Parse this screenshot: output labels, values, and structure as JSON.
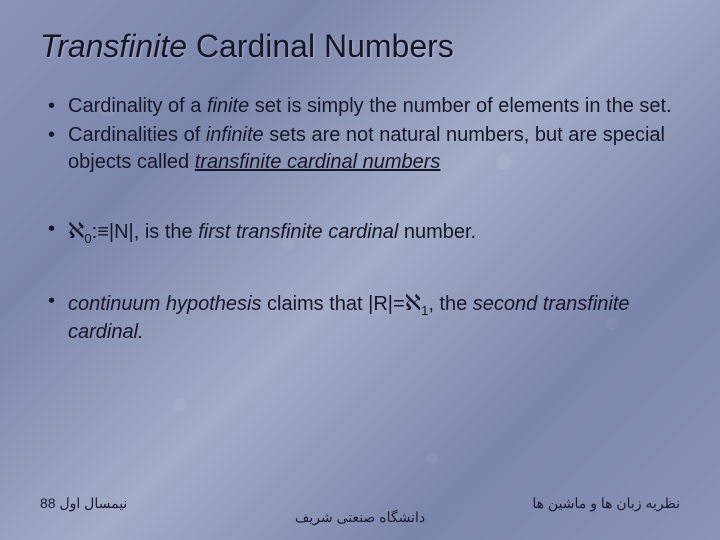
{
  "colors": {
    "background_gradient": [
      "#8a94b8",
      "#7b86ac",
      "#a4adc7"
    ],
    "text": "#161628",
    "title": "#161625"
  },
  "typography": {
    "title_fontsize": 32,
    "body_fontsize": 20,
    "footer_fontsize": 14,
    "title_style": "italic-first-word"
  },
  "title": {
    "italic_part": "Transfinite",
    "rest": " Cardinal Numbers"
  },
  "bullets": [
    {
      "runs": [
        {
          "t": "Cardinality of a "
        },
        {
          "t": "finite",
          "italic": true
        },
        {
          "t": " set is simply the number of elements in the set."
        }
      ],
      "gap": "small"
    },
    {
      "runs": [
        {
          "t": "Cardinalities of "
        },
        {
          "t": "infinite",
          "italic": true
        },
        {
          "t": " sets are not natural numbers, but are special objects called "
        },
        {
          "t": "transfinite cardinal numbers",
          "italic": true,
          "underline": true
        }
      ],
      "gap": "large"
    },
    {
      "runs": [
        {
          "t": "ℵ",
          "aleph": true
        },
        {
          "t": "0",
          "sub": true
        },
        {
          "t": ":≡|N|"
        },
        {
          "t": ", is the "
        },
        {
          "t": "first transfinite cardinal",
          "italic": true
        },
        {
          "t": " number."
        }
      ],
      "gap": "large"
    },
    {
      "runs": [
        {
          "t": "continuum hypothesis",
          "italic": true
        },
        {
          "t": " claims that |R|="
        },
        {
          "t": "ℵ",
          "aleph": true
        },
        {
          "t": "1",
          "sub": true
        },
        {
          "t": ", the "
        },
        {
          "t": "second transfinite cardinal.",
          "italic": true
        }
      ],
      "gap": "large"
    }
  ],
  "footer": {
    "left": "نیمسال اول 88",
    "center": "دانشگاه صنعتی شریف",
    "right": "نظریه زبان ها و ماشین ها"
  }
}
